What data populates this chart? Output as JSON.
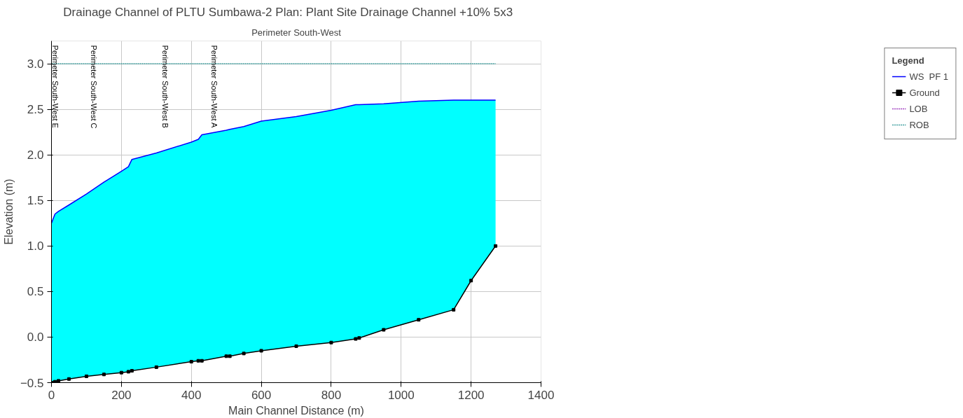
{
  "chart_data": {
    "type": "line",
    "title": "Drainage Channel of PLTU Sumbawa-2      Plan: Plant Site Drainage Channel +10% 5x3",
    "xlabel": "Main Channel Distance (m)",
    "ylabel": "Elevation (m)",
    "legend_title": "Legend",
    "legend": "right",
    "grid": true,
    "x": [
      0,
      10,
      20,
      50,
      100,
      150,
      200,
      220,
      230,
      300,
      400,
      420,
      430,
      500,
      510,
      550,
      600,
      700,
      800,
      870,
      880,
      950,
      1050,
      1150,
      1200,
      1270
    ],
    "series": [
      {
        "name": "WS  PF 1",
        "color": "#0000ff",
        "values": [
          1.25,
          1.35,
          1.38,
          1.45,
          1.57,
          1.7,
          1.82,
          1.87,
          1.95,
          2.02,
          2.14,
          2.17,
          2.22,
          2.27,
          2.28,
          2.31,
          2.37,
          2.42,
          2.49,
          2.55,
          2.55,
          2.56,
          2.59,
          2.6,
          2.6,
          2.6
        ],
        "lower": [
          -0.5,
          -0.49,
          -0.48,
          -0.46,
          -0.43,
          -0.41,
          -0.39,
          -0.38,
          -0.37,
          -0.33,
          -0.27,
          -0.26,
          -0.26,
          -0.21,
          -0.21,
          -0.18,
          -0.15,
          -0.1,
          -0.06,
          -0.02,
          -0.01,
          0.08,
          0.19,
          0.3,
          0.62,
          1.0
        ],
        "upper": [
          1.25,
          1.35,
          1.38,
          1.45,
          1.57,
          1.7,
          1.82,
          1.87,
          1.95,
          2.02,
          2.14,
          2.17,
          2.22,
          2.27,
          2.28,
          2.31,
          2.37,
          2.42,
          2.49,
          2.55,
          2.55,
          2.56,
          2.59,
          2.6,
          2.6,
          2.6
        ]
      },
      {
        "name": "Ground",
        "color": "#000000",
        "marker": "square",
        "values": [
          -0.5,
          -0.49,
          -0.48,
          -0.46,
          -0.43,
          -0.41,
          -0.39,
          -0.38,
          -0.37,
          -0.33,
          -0.27,
          -0.26,
          -0.26,
          -0.21,
          -0.21,
          -0.18,
          -0.15,
          -0.1,
          -0.06,
          -0.02,
          -0.01,
          0.08,
          0.19,
          0.3,
          0.62,
          1.0
        ]
      },
      {
        "name": "LOB",
        "color": "#a040c0",
        "line_style": "dotted",
        "values": [
          null,
          null,
          null,
          null,
          null,
          null,
          null,
          null,
          null,
          null,
          null,
          null,
          null,
          null,
          null,
          null,
          null,
          null,
          null,
          null,
          null,
          null,
          null,
          null,
          null,
          null
        ]
      },
      {
        "name": "ROB",
        "color": "#40a0a0",
        "line_style": "dotted",
        "x": [
          0,
          1270
        ],
        "values": [
          3.0,
          3.0
        ]
      }
    ],
    "xlim": [
      0,
      1400
    ],
    "xticks": [
      0,
      200,
      400,
      600,
      800,
      1000,
      1200,
      1400
    ],
    "ylim": [
      -0.5,
      3.25
    ],
    "yticks": [
      -0.5,
      {
        "value": 0,
        "label": "0.0"
      },
      0.5,
      {
        "value": 1,
        "label": "1.0"
      },
      1.5,
      {
        "value": 2,
        "label": "2.0"
      },
      2.5,
      {
        "value": 3,
        "label": "3.0"
      }
    ],
    "annotations": [
      "Perimeter South-West E",
      "Perimeter South-West C",
      "Perimeter South-West B",
      "Perimeter South-West A",
      "Perimeter South-West"
    ]
  }
}
